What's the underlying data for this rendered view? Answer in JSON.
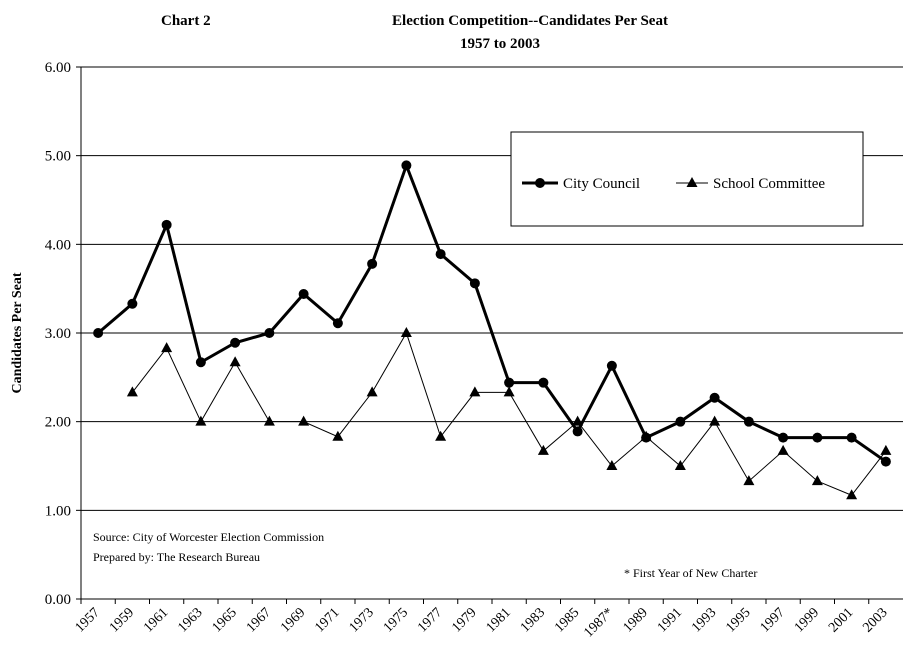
{
  "chart_data": {
    "type": "line",
    "chart_label": "Chart 2",
    "title": "Election Competition--Candidates Per Seat",
    "subtitle": "1957 to 2003",
    "ylabel": "Candidates Per Seat",
    "xlabel": "",
    "ylim": [
      0,
      6
    ],
    "yticks": [
      "0.00",
      "1.00",
      "2.00",
      "3.00",
      "4.00",
      "5.00",
      "6.00"
    ],
    "categories": [
      "1957",
      "1959",
      "1961",
      "1963",
      "1965",
      "1967",
      "1969",
      "1971",
      "1973",
      "1975",
      "1977",
      "1979",
      "1981",
      "1983",
      "1985",
      "1987*",
      "1989",
      "1991",
      "1993",
      "1995",
      "1997",
      "1999",
      "2001",
      "2003"
    ],
    "grid": true,
    "legend_position": "upper-right",
    "series": [
      {
        "name": "City Council",
        "marker": "circle",
        "line_style": "thick",
        "values": [
          3.0,
          3.33,
          4.22,
          2.67,
          2.89,
          3.0,
          3.44,
          3.11,
          3.78,
          4.89,
          3.89,
          3.56,
          2.44,
          2.44,
          1.89,
          2.63,
          1.82,
          2.0,
          2.27,
          2.0,
          1.82,
          1.82,
          1.82,
          1.55
        ]
      },
      {
        "name": "School Committee",
        "marker": "triangle",
        "line_style": "thin",
        "values": [
          null,
          2.33,
          2.83,
          2.0,
          2.67,
          2.0,
          2.0,
          1.83,
          2.33,
          3.0,
          1.83,
          2.33,
          2.33,
          1.67,
          2.0,
          1.5,
          1.83,
          1.5,
          2.0,
          1.33,
          1.67,
          1.33,
          1.17,
          1.67
        ]
      }
    ],
    "annotations": {
      "source": "Source: City of Worcester Election Commission",
      "prepared_by": "Prepared by: The Research Bureau",
      "footnote": "* First Year of New Charter"
    },
    "colors": {
      "line": "#000000",
      "grid": "#000000",
      "background": "#ffffff"
    }
  }
}
